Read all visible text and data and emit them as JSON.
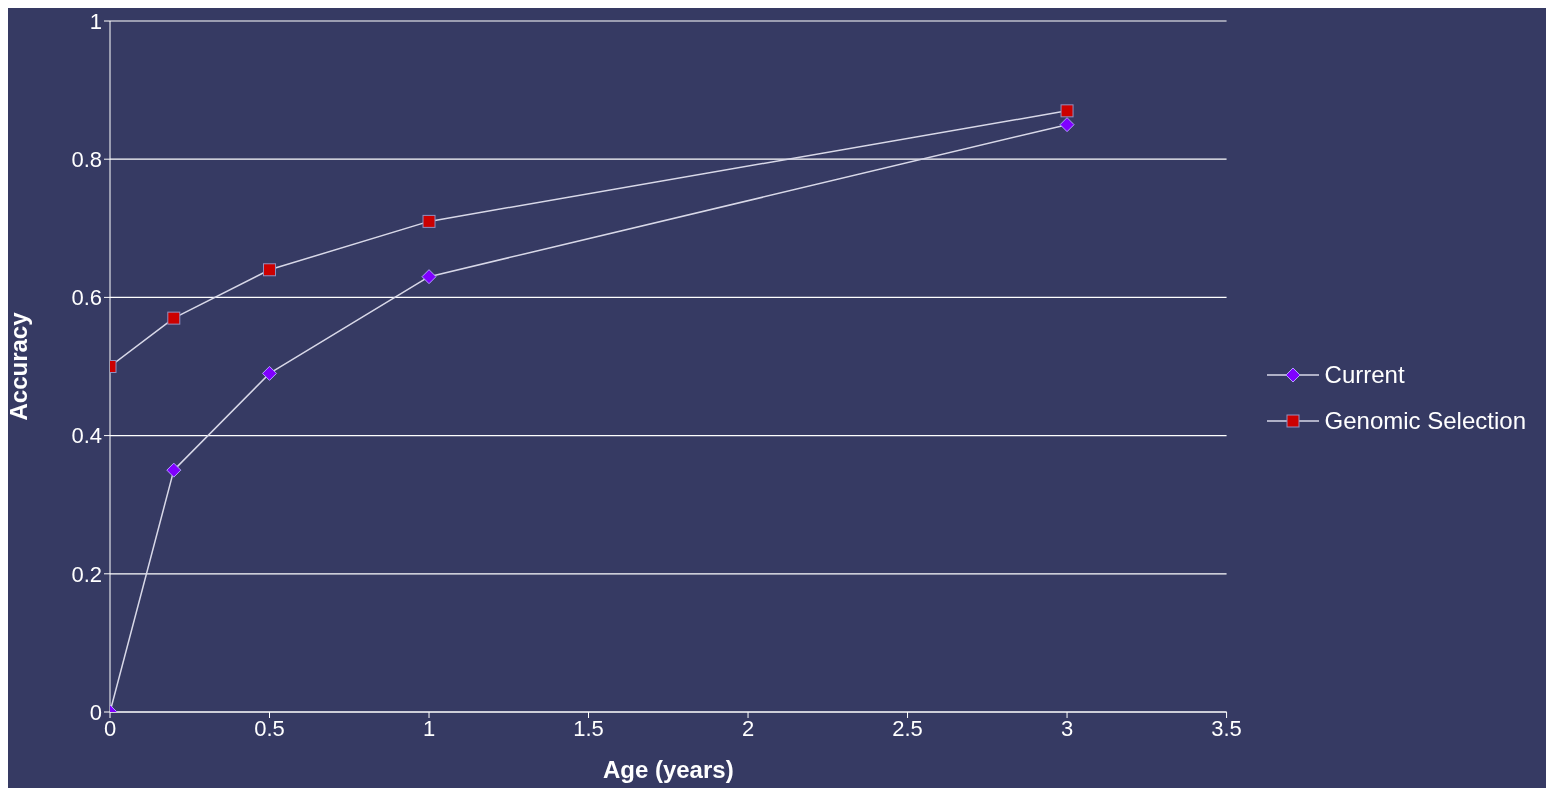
{
  "chart_data": {
    "type": "line",
    "xlabel": "Age (years)",
    "ylabel": "Accuracy",
    "x": [
      0,
      0.2,
      0.5,
      1,
      3
    ],
    "series": [
      {
        "name": "Current",
        "color": "#8000ff",
        "marker": "diamond",
        "values": [
          0,
          0.35,
          0.49,
          0.63,
          0.85
        ]
      },
      {
        "name": "Genomic Selection",
        "color": "#cc0000",
        "marker": "square",
        "values": [
          0.5,
          0.57,
          0.64,
          0.71,
          0.87
        ]
      }
    ],
    "xlim": [
      0,
      3.5
    ],
    "xticks": [
      0,
      0.5,
      1,
      1.5,
      2,
      2.5,
      3,
      3.5
    ],
    "ylim": [
      0,
      1
    ],
    "yticks": [
      0,
      0.2,
      0.4,
      0.6,
      0.8,
      1
    ],
    "grid": "y",
    "legend": "right"
  }
}
